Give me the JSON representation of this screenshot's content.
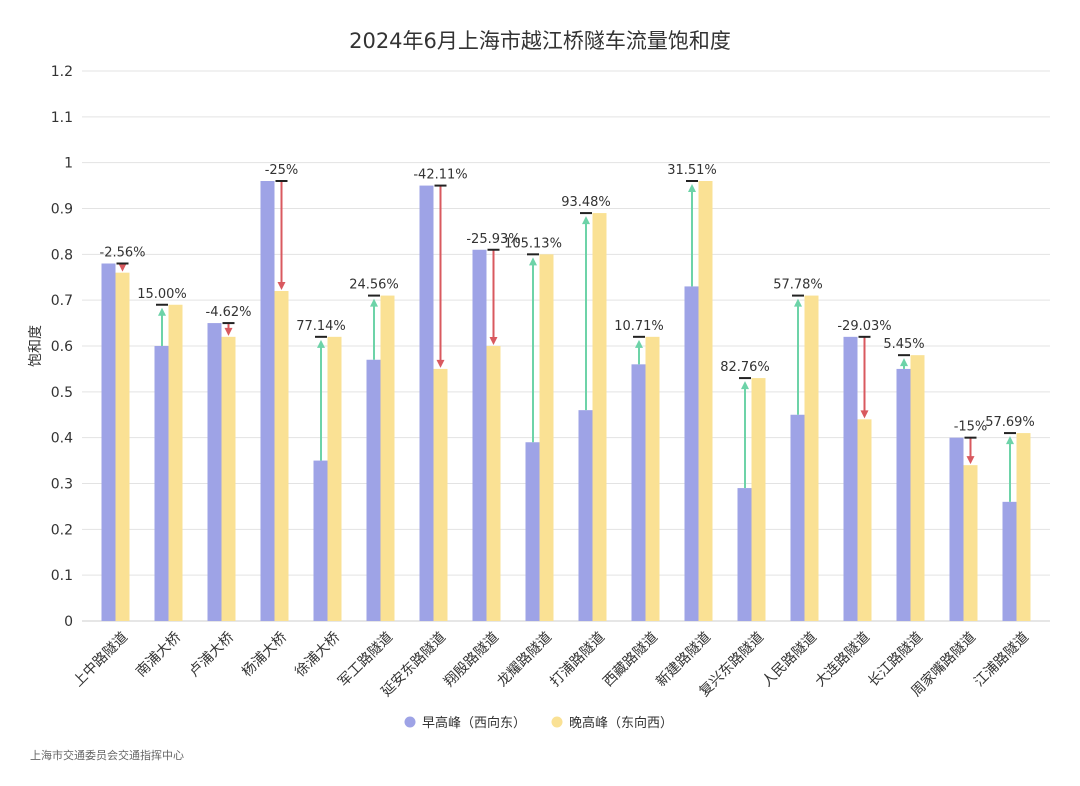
{
  "chart_data": {
    "type": "bar",
    "title": "2024年6月上海市越江桥隧车流量饱和度",
    "xlabel": "",
    "ylabel": "饱和度",
    "ylim": [
      0,
      1.2
    ],
    "yticks": [
      "0",
      "0.1",
      "0.2",
      "0.3",
      "0.4",
      "0.5",
      "0.6",
      "0.7",
      "0.8",
      "0.9",
      "1",
      "1.1",
      "1.2"
    ],
    "categories": [
      "上中路隧道",
      "南浦大桥",
      "卢浦大桥",
      "杨浦大桥",
      "徐浦大桥",
      "军工路隧道",
      "延安东路隧道",
      "翔殷路隧道",
      "龙耀路隧道",
      "打浦路隧道",
      "西藏路隧道",
      "新建路隧道",
      "复兴东路隧道",
      "人民路隧道",
      "大连路隧道",
      "长江路隧道",
      "周家嘴路隧道",
      "江浦路隧道"
    ],
    "series": [
      {
        "name": "早高峰（西向东）",
        "color": "#9ea3e6",
        "values": [
          0.78,
          0.6,
          0.65,
          0.96,
          0.35,
          0.57,
          0.95,
          0.81,
          0.39,
          0.46,
          0.56,
          0.73,
          0.29,
          0.45,
          0.62,
          0.55,
          0.4,
          0.26
        ]
      },
      {
        "name": "晚高峰（东向西）",
        "color": "#fae194",
        "values": [
          0.76,
          0.69,
          0.62,
          0.72,
          0.62,
          0.71,
          0.55,
          0.6,
          0.8,
          0.89,
          0.62,
          0.96,
          0.53,
          0.71,
          0.44,
          0.58,
          0.34,
          0.41
        ]
      }
    ],
    "change_labels": [
      "-2.56%",
      "15.00%",
      "-4.62%",
      "-25%",
      "77.14%",
      "24.56%",
      "-42.11%",
      "-25.93%",
      "105.13%",
      "93.48%",
      "10.71%",
      "31.51%",
      "82.76%",
      "57.78%",
      "-29.03%",
      "5.45%",
      "-15%",
      "57.69%"
    ],
    "arrow_colors": {
      "increase": "#6dd3a8",
      "decrease": "#d9595f"
    },
    "legend_position": "bottom",
    "grid": true
  },
  "source": "上海市交通委员会交通指挥中心"
}
